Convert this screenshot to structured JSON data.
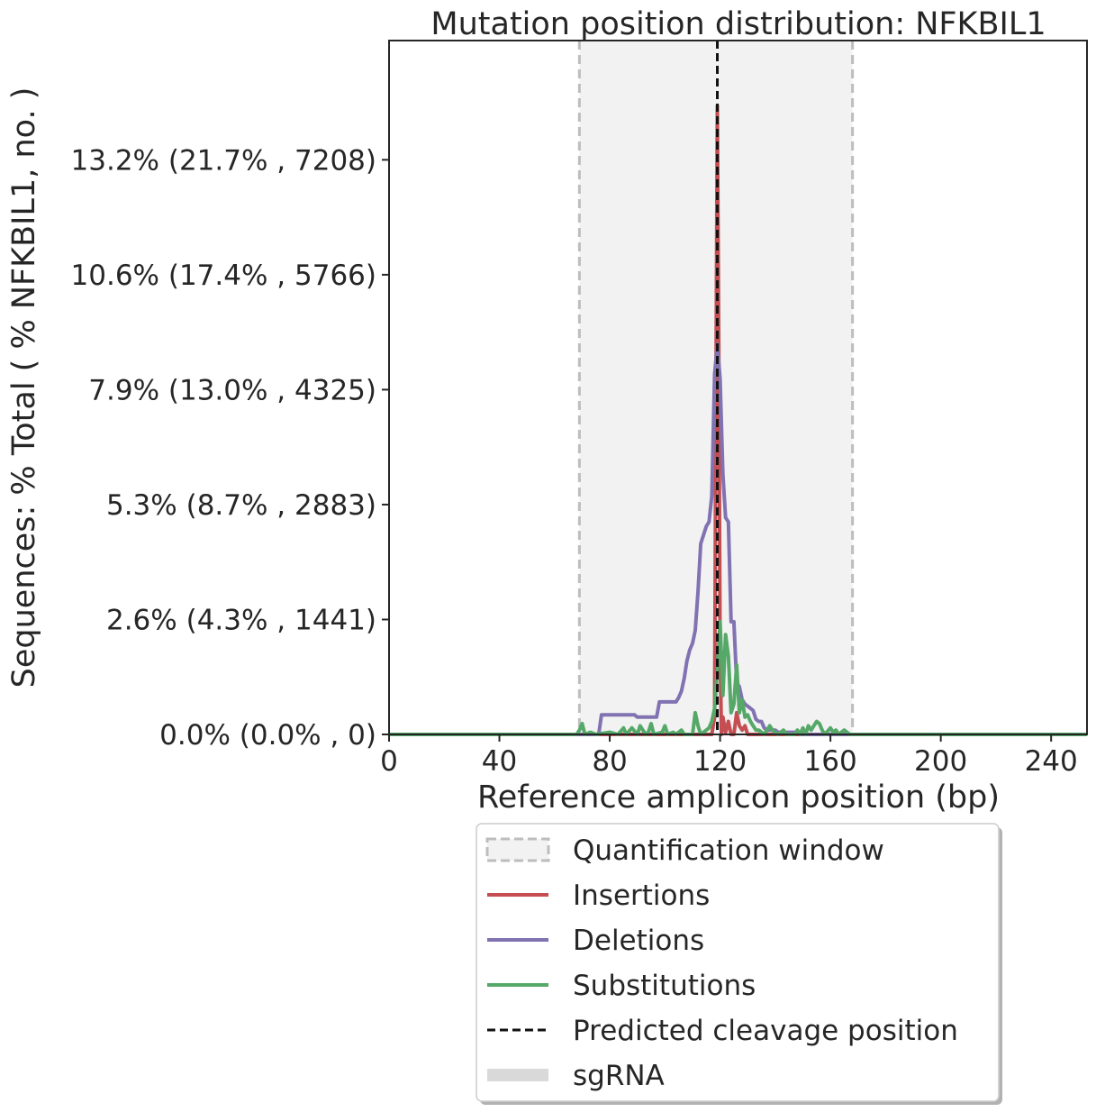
{
  "chart_data": {
    "type": "line",
    "title": "Mutation position distribution: NFKBIL1",
    "xlabel": "Reference amplicon position (bp)",
    "ylabel": "Sequences: % Total ( % NFKBIL1, no. )",
    "xlim": [
      0,
      253
    ],
    "ylim": [
      0,
      16.0
    ],
    "x_ticks": [
      0,
      40,
      80,
      120,
      160,
      200,
      240
    ],
    "y_ticks": [
      {
        "value": 0.0,
        "label": "0.0% (0.0% , 0)"
      },
      {
        "value": 2.65,
        "label": "2.6% (4.3% , 1441)"
      },
      {
        "value": 5.3,
        "label": "5.3% (8.7% , 2883)"
      },
      {
        "value": 7.95,
        "label": "7.9% (13.0% , 4325)"
      },
      {
        "value": 10.6,
        "label": "10.6% (17.4% , 5766)"
      },
      {
        "value": 13.25,
        "label": "13.2% (21.7% , 7208)"
      }
    ],
    "quantification_window": [
      69,
      168
    ],
    "predicted_cleavage_position": 119,
    "series": [
      {
        "name": "Insertions",
        "color": "#c44e52",
        "points": [
          [
            0,
            0
          ],
          [
            117,
            0
          ],
          [
            118,
            0.4
          ],
          [
            118.5,
            8
          ],
          [
            119,
            14.5
          ],
          [
            119.5,
            9
          ],
          [
            120,
            2
          ],
          [
            120.5,
            0
          ],
          [
            121,
            0.4
          ],
          [
            122,
            0.05
          ],
          [
            123,
            0.3
          ],
          [
            124,
            0
          ],
          [
            125,
            0
          ],
          [
            126,
            0.5
          ],
          [
            127,
            0.2
          ],
          [
            128,
            0.1
          ],
          [
            129,
            0.2
          ],
          [
            130,
            0
          ],
          [
            253,
            0
          ]
        ]
      },
      {
        "name": "Deletions",
        "color": "#8172b2",
        "points": [
          [
            0,
            0
          ],
          [
            76,
            0
          ],
          [
            77,
            0.45
          ],
          [
            89,
            0.45
          ],
          [
            90,
            0.4
          ],
          [
            97,
            0.4
          ],
          [
            98,
            0.75
          ],
          [
            104,
            0.75
          ],
          [
            105,
            0.85
          ],
          [
            106,
            1.0
          ],
          [
            107,
            1.3
          ],
          [
            108,
            1.7
          ],
          [
            109,
            1.95
          ],
          [
            110,
            2.1
          ],
          [
            111,
            2.4
          ],
          [
            112,
            3.3
          ],
          [
            113,
            4.4
          ],
          [
            114,
            4.6
          ],
          [
            115,
            4.8
          ],
          [
            116,
            4.9
          ],
          [
            117,
            5.5
          ],
          [
            118,
            8.3
          ],
          [
            119,
            9.0
          ],
          [
            120,
            8.2
          ],
          [
            121,
            6.0
          ],
          [
            122,
            5.0
          ],
          [
            123,
            4.9
          ],
          [
            124,
            2.6
          ],
          [
            125,
            2.6
          ],
          [
            126,
            1.2
          ],
          [
            127,
            1.1
          ],
          [
            128,
            0.8
          ],
          [
            129,
            0.7
          ],
          [
            130,
            0.65
          ],
          [
            131,
            0.6
          ],
          [
            132,
            0.55
          ],
          [
            133,
            0.35
          ],
          [
            134,
            0.3
          ],
          [
            135,
            0.3
          ],
          [
            136,
            0.15
          ],
          [
            137,
            0.1
          ],
          [
            140,
            0.1
          ],
          [
            141,
            0.05
          ],
          [
            148,
            0.05
          ],
          [
            149,
            0
          ],
          [
            253,
            0
          ]
        ]
      },
      {
        "name": "Substitutions",
        "color": "#55a868",
        "points": [
          [
            0,
            0
          ],
          [
            68,
            0
          ],
          [
            69,
            0.1
          ],
          [
            70,
            0.25
          ],
          [
            71,
            0
          ],
          [
            73,
            0.05
          ],
          [
            75,
            0
          ],
          [
            80,
            0.05
          ],
          [
            83,
            0
          ],
          [
            85,
            0.15
          ],
          [
            86,
            0
          ],
          [
            88,
            0.15
          ],
          [
            90,
            0
          ],
          [
            91,
            0.2
          ],
          [
            93,
            0
          ],
          [
            94,
            0.05
          ],
          [
            95,
            0.25
          ],
          [
            96,
            0
          ],
          [
            99,
            0.05
          ],
          [
            100,
            0.2
          ],
          [
            101,
            0
          ],
          [
            103,
            0.05
          ],
          [
            104,
            0
          ],
          [
            106,
            0.1
          ],
          [
            107,
            0
          ],
          [
            110,
            0
          ],
          [
            111,
            0.5
          ],
          [
            112,
            0.2
          ],
          [
            113,
            0
          ],
          [
            115,
            0.1
          ],
          [
            116,
            0.15
          ],
          [
            117,
            0.3
          ],
          [
            118,
            0.6
          ],
          [
            119,
            1.5
          ],
          [
            120,
            2.6
          ],
          [
            121,
            0.9
          ],
          [
            122,
            2.3
          ],
          [
            123,
            1.8
          ],
          [
            124,
            0.5
          ],
          [
            125,
            0.7
          ],
          [
            126,
            1.6
          ],
          [
            127,
            0.5
          ],
          [
            128,
            0.8
          ],
          [
            129,
            0.4
          ],
          [
            130,
            0.45
          ],
          [
            131,
            0.3
          ],
          [
            132,
            0.2
          ],
          [
            133,
            0.1
          ],
          [
            134,
            0.1
          ],
          [
            136,
            0
          ],
          [
            138,
            0.2
          ],
          [
            139,
            0.1
          ],
          [
            141,
            0
          ],
          [
            143,
            0.1
          ],
          [
            144,
            0
          ],
          [
            147,
            0
          ],
          [
            148,
            0.1
          ],
          [
            149,
            0
          ],
          [
            150,
            0.15
          ],
          [
            151,
            0
          ],
          [
            152,
            0.2
          ],
          [
            153,
            0.1
          ],
          [
            154,
            0.2
          ],
          [
            155,
            0.3
          ],
          [
            156,
            0.25
          ],
          [
            157,
            0.1
          ],
          [
            158,
            0
          ],
          [
            160,
            0.15
          ],
          [
            161,
            0.05
          ],
          [
            162,
            0.1
          ],
          [
            163,
            0
          ],
          [
            165,
            0.1
          ],
          [
            166,
            0.05
          ],
          [
            167,
            0
          ],
          [
            253,
            0
          ]
        ]
      }
    ],
    "legend": {
      "placement": "below",
      "entries": [
        {
          "label": "Quantification window",
          "kind": "patch"
        },
        {
          "label": "Insertions",
          "kind": "line",
          "color": "#c44e52"
        },
        {
          "label": "Deletions",
          "kind": "line",
          "color": "#8172b2"
        },
        {
          "label": "Substitutions",
          "kind": "line",
          "color": "#55a868"
        },
        {
          "label": "Predicted cleavage position",
          "kind": "dashed",
          "color": "#111111"
        },
        {
          "label": "sgRNA",
          "kind": "thick",
          "color": "#d9d9d9"
        }
      ]
    }
  }
}
